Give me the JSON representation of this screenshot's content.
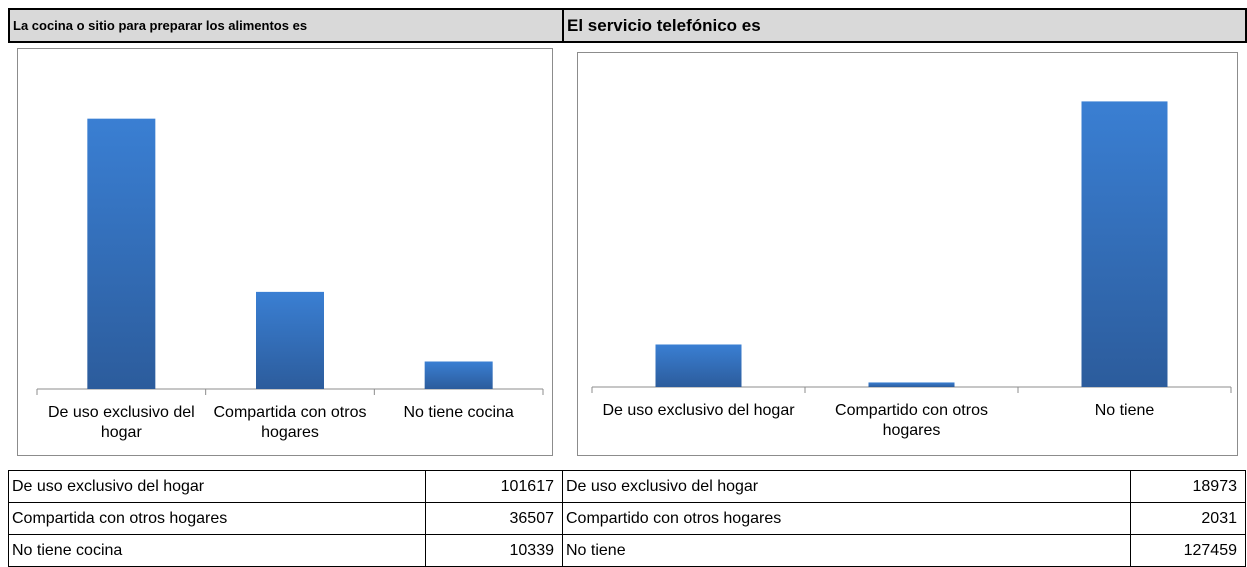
{
  "chart_data": [
    {
      "type": "bar",
      "title": "La cocina o sitio para preparar los alimentos es",
      "categories": [
        "De uso exclusivo del hogar",
        "Compartida con otros hogares",
        "No tiene cocina"
      ],
      "values": [
        101617,
        36507,
        10339
      ],
      "color": "#3a7fd3"
    },
    {
      "type": "bar",
      "title": "El servicio telefónico es",
      "categories": [
        "De uso exclusivo del hogar",
        "Compartido con otros hogares",
        "No tiene"
      ],
      "values": [
        18973,
        2031,
        127459
      ],
      "color": "#3a7fd3"
    }
  ]
}
